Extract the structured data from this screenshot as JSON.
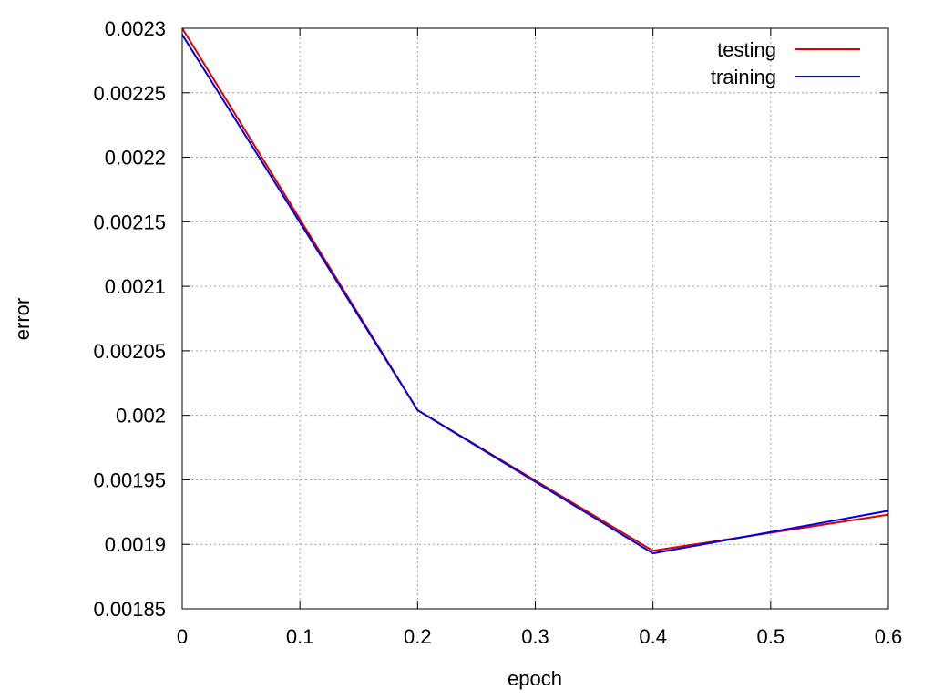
{
  "chart_data": {
    "type": "line",
    "title": "",
    "xlabel": "epoch",
    "ylabel": "error",
    "xlim": [
      0,
      0.6
    ],
    "ylim": [
      0.00185,
      0.0023
    ],
    "x_ticks": [
      0,
      0.1,
      0.2,
      0.3,
      0.4,
      0.5,
      0.6
    ],
    "x_tick_labels": [
      "0",
      "0.1",
      "0.2",
      "0.3",
      "0.4",
      "0.5",
      "0.6"
    ],
    "y_ticks": [
      0.00185,
      0.0019,
      0.00195,
      0.002,
      0.00205,
      0.0021,
      0.00215,
      0.0022,
      0.00225,
      0.0023
    ],
    "y_tick_labels": [
      "0.00185",
      "0.0019",
      "0.00195",
      "0.002",
      "0.00205",
      "0.0021",
      "0.00215",
      "0.0022",
      "0.00225",
      "0.0023"
    ],
    "grid": true,
    "legend_position": "top-right",
    "series": [
      {
        "name": "testing",
        "color": "#dd0000",
        "x": [
          0,
          0.2,
          0.4,
          0.6
        ],
        "y": [
          0.0023,
          0.002004,
          0.001895,
          0.001923
        ]
      },
      {
        "name": "training",
        "color": "#0000dd",
        "x": [
          0,
          0.2,
          0.4,
          0.6
        ],
        "y": [
          0.002295,
          0.002004,
          0.001893,
          0.001926
        ]
      }
    ]
  }
}
